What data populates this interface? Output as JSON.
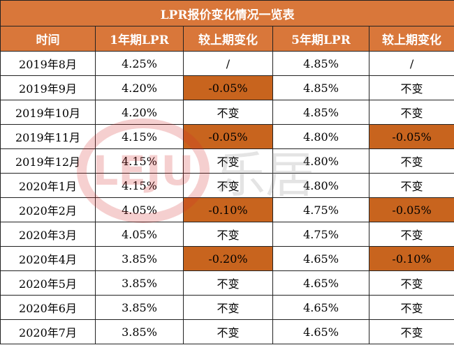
{
  "title": "LPR报价变化情况一览表",
  "watermark": {
    "latin": "LEJU",
    "cjk": "乐居"
  },
  "table": {
    "header": [
      "时间",
      "1年期LPR",
      "较上期变化",
      "5年期LPR",
      "较上期变化"
    ],
    "rows": [
      [
        "2019年8月",
        "4.25%",
        "/",
        "4.85%",
        "/"
      ],
      [
        "2019年9月",
        "4.20%",
        "-0.05%",
        "4.85%",
        "不变"
      ],
      [
        "2019年10月",
        "4.20%",
        "不变",
        "4.85%",
        "不变"
      ],
      [
        "2019年11月",
        "4.15%",
        "-0.05%",
        "4.80%",
        "-0.05%"
      ],
      [
        "2019年12月",
        "4.15%",
        "不变",
        "4.80%",
        "不变"
      ],
      [
        "2020年1月",
        "4.15%",
        "不变",
        "4.80%",
        "不变"
      ],
      [
        "2020年2月",
        "4.05%",
        "-0.10%",
        "4.75%",
        "-0.05%"
      ],
      [
        "2020年3月",
        "4.05%",
        "不变",
        "4.75%",
        "不变"
      ],
      [
        "2020年4月",
        "3.85%",
        "-0.20%",
        "4.65%",
        "-0.10%"
      ],
      [
        "2020年5月",
        "3.85%",
        "不变",
        "4.65%",
        "不变"
      ],
      [
        "2020年6月",
        "3.85%",
        "不变",
        "4.65%",
        "不变"
      ],
      [
        "2020年7月",
        "3.85%",
        "不变",
        "4.65%",
        "不变"
      ]
    ]
  }
}
